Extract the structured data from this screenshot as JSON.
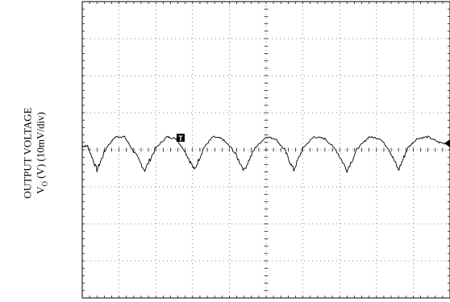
{
  "chart_data": {
    "type": "line",
    "ylabel_line1": "OUTPUT VOLTAGE",
    "ylabel_line2_prefix": "V",
    "ylabel_line2_sub": "O",
    "ylabel_line2_suffix": " (V) (10mV/div)",
    "grid": {
      "x_divisions": 10,
      "y_divisions": 8,
      "style": "dotted"
    },
    "trigger_marker": "T",
    "y_range_div": [
      -4,
      4
    ],
    "x_range_div": [
      0,
      10
    ],
    "series": [
      {
        "x": [
          0.0,
          0.15,
          0.4,
          0.65,
          0.9,
          1.15,
          1.4,
          1.7,
          2.0,
          2.3,
          2.55,
          2.8,
          3.05,
          3.3,
          3.55,
          3.8,
          4.1,
          4.4,
          4.7,
          5.0,
          5.25,
          5.5,
          5.75,
          6.0,
          6.3,
          6.6,
          6.9,
          7.2,
          7.5,
          7.8,
          8.1,
          8.35,
          8.6,
          8.85,
          9.1,
          9.4,
          9.7,
          10.0
        ],
        "y": [
          0.1,
          0.1,
          -0.55,
          0.05,
          0.35,
          0.35,
          -0.05,
          -0.55,
          0.05,
          0.35,
          0.3,
          -0.05,
          -0.55,
          0.05,
          0.35,
          0.3,
          0.0,
          -0.55,
          0.05,
          0.35,
          0.3,
          0.0,
          -0.55,
          0.05,
          0.35,
          0.3,
          0.0,
          -0.55,
          0.05,
          0.35,
          0.3,
          0.0,
          -0.55,
          0.05,
          0.3,
          0.35,
          0.2,
          0.15
        ]
      }
    ]
  }
}
